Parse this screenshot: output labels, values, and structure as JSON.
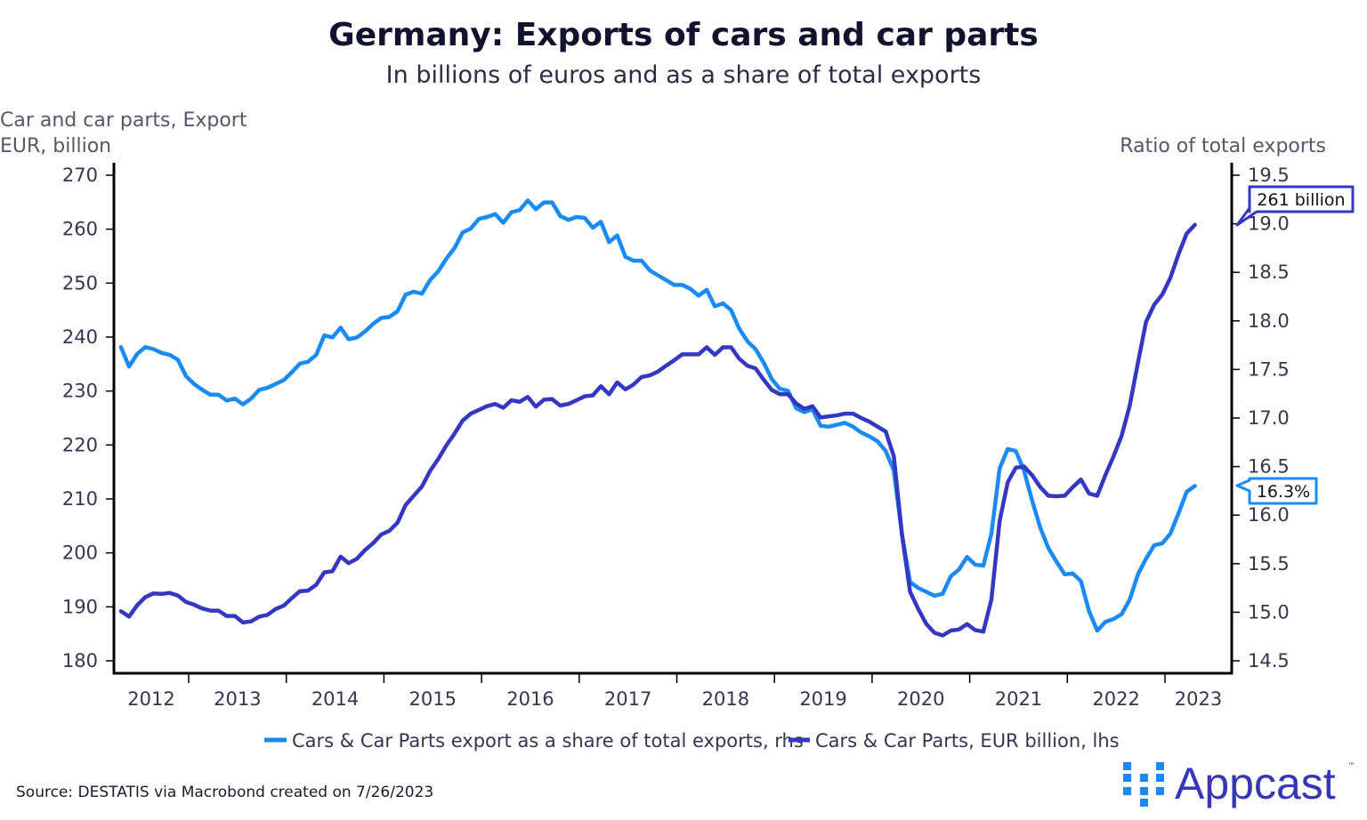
{
  "chart_data": {
    "type": "line",
    "title": "Germany: Exports of cars and car parts",
    "subtitle": "In billions of euros and as a share of total exports",
    "ylabel_left": [
      "Car and car parts, Export",
      "EUR, billion"
    ],
    "ylabel_right": "Ratio of total exports",
    "ylim_left": [
      180,
      270
    ],
    "ylim_right": [
      14.5,
      19.5
    ],
    "yticks_left": [
      "180",
      "190",
      "200",
      "210",
      "220",
      "230",
      "240",
      "250",
      "260",
      "270"
    ],
    "yticks_right": [
      "14.5",
      "15.0",
      "15.5",
      "16.0",
      "16.5",
      "17.0",
      "17.5",
      "18.0",
      "18.5",
      "19.0",
      "19.5"
    ],
    "xticks": [
      "2012",
      "2013",
      "2014",
      "2015",
      "2016",
      "2017",
      "2018",
      "2019",
      "2020",
      "2021",
      "2022",
      "2023"
    ],
    "grid": false,
    "legend_position": "bottom",
    "x": [
      "2012-05",
      "2012-06",
      "2012-07",
      "2012-08",
      "2012-09",
      "2012-10",
      "2012-11",
      "2012-12",
      "2013-01",
      "2013-02",
      "2013-03",
      "2013-04",
      "2013-05",
      "2013-06",
      "2013-07",
      "2013-08",
      "2013-09",
      "2013-10",
      "2013-11",
      "2013-12",
      "2014-01",
      "2014-02",
      "2014-03",
      "2014-04",
      "2014-05",
      "2014-06",
      "2014-07",
      "2014-08",
      "2014-09",
      "2014-10",
      "2014-11",
      "2014-12",
      "2015-01",
      "2015-02",
      "2015-03",
      "2015-04",
      "2015-05",
      "2015-06",
      "2015-07",
      "2015-08",
      "2015-09",
      "2015-10",
      "2015-11",
      "2015-12",
      "2016-01",
      "2016-02",
      "2016-03",
      "2016-04",
      "2016-05",
      "2016-06",
      "2016-07",
      "2016-08",
      "2016-09",
      "2016-10",
      "2016-11",
      "2016-12",
      "2017-01",
      "2017-02",
      "2017-03",
      "2017-04",
      "2017-05",
      "2017-06",
      "2017-07",
      "2017-08",
      "2017-09",
      "2017-10",
      "2017-11",
      "2017-12",
      "2018-01",
      "2018-02",
      "2018-03",
      "2018-04",
      "2018-05",
      "2018-06",
      "2018-07",
      "2018-08",
      "2018-09",
      "2018-10",
      "2018-11",
      "2018-12",
      "2019-01",
      "2019-02",
      "2019-03",
      "2019-04",
      "2019-05",
      "2019-06",
      "2019-07",
      "2019-08",
      "2019-09",
      "2019-10",
      "2019-11",
      "2019-12",
      "2020-01",
      "2020-02",
      "2020-03",
      "2020-04",
      "2020-05",
      "2020-06",
      "2020-07",
      "2020-08",
      "2020-09",
      "2020-10",
      "2020-11",
      "2020-12",
      "2021-01",
      "2021-02",
      "2021-03",
      "2021-04",
      "2021-05",
      "2021-06",
      "2021-07",
      "2021-08",
      "2021-09",
      "2021-10",
      "2021-11",
      "2021-12",
      "2022-01",
      "2022-02",
      "2022-03",
      "2022-04",
      "2022-05",
      "2022-06",
      "2022-07",
      "2022-08",
      "2022-09",
      "2022-10",
      "2022-11",
      "2022-12",
      "2023-01",
      "2023-02",
      "2023-03",
      "2023-04",
      "2023-05"
    ],
    "series": [
      {
        "name": "Cars & Car Parts export as a share of total exports, rhs",
        "axis": "right",
        "color": "#1a8af5",
        "values": [
          17.73,
          17.53,
          17.66,
          17.73,
          17.71,
          17.67,
          17.65,
          17.6,
          17.43,
          17.35,
          17.29,
          17.24,
          17.24,
          17.18,
          17.2,
          17.14,
          17.2,
          17.29,
          17.31,
          17.35,
          17.39,
          17.47,
          17.56,
          17.58,
          17.65,
          17.85,
          17.83,
          17.93,
          17.81,
          17.83,
          17.89,
          17.97,
          18.03,
          18.04,
          18.1,
          18.27,
          18.3,
          18.28,
          18.42,
          18.51,
          18.64,
          18.75,
          18.91,
          18.95,
          19.05,
          19.07,
          19.1,
          19.01,
          19.12,
          19.14,
          19.24,
          19.15,
          19.22,
          19.22,
          19.08,
          19.04,
          19.07,
          19.06,
          18.96,
          19.02,
          18.81,
          18.88,
          18.66,
          18.62,
          18.62,
          18.52,
          18.47,
          18.42,
          18.37,
          18.37,
          18.33,
          18.26,
          18.32,
          18.15,
          18.18,
          18.11,
          17.92,
          17.79,
          17.71,
          17.57,
          17.4,
          17.3,
          17.28,
          17.1,
          17.06,
          17.09,
          16.92,
          16.91,
          16.93,
          16.95,
          16.91,
          16.85,
          16.81,
          16.76,
          16.66,
          16.46,
          15.8,
          15.31,
          15.25,
          15.21,
          15.17,
          15.19,
          15.37,
          15.44,
          15.57,
          15.49,
          15.48,
          15.81,
          16.48,
          16.68,
          16.66,
          16.46,
          16.15,
          15.87,
          15.66,
          15.52,
          15.39,
          15.4,
          15.32,
          15.01,
          14.81,
          14.9,
          14.93,
          14.98,
          15.13,
          15.39,
          15.55,
          15.69,
          15.71,
          15.81,
          16.02,
          16.24,
          16.3
        ]
      },
      {
        "name": "Cars & Car Parts, EUR billion, lhs",
        "axis": "left",
        "color": "#3337c2",
        "values": [
          189.2,
          188.2,
          190.3,
          191.8,
          192.5,
          192.4,
          192.6,
          192.1,
          190.9,
          190.4,
          189.7,
          189.3,
          189.3,
          188.3,
          188.3,
          187.1,
          187.3,
          188.2,
          188.5,
          189.6,
          190.2,
          191.6,
          192.9,
          193.0,
          194.1,
          196.4,
          196.6,
          199.3,
          198.1,
          198.9,
          200.5,
          201.8,
          203.4,
          204.1,
          205.6,
          208.9,
          210.6,
          212.3,
          215.2,
          217.4,
          219.9,
          222.1,
          224.5,
          225.8,
          226.5,
          227.2,
          227.6,
          226.9,
          228.3,
          228.0,
          228.9,
          227.1,
          228.4,
          228.5,
          227.3,
          227.6,
          228.3,
          229.0,
          229.2,
          230.9,
          229.4,
          231.6,
          230.3,
          231.2,
          232.6,
          232.9,
          233.6,
          234.7,
          235.7,
          236.8,
          236.8,
          236.8,
          238.1,
          236.7,
          238.1,
          238.1,
          236.0,
          234.7,
          234.2,
          232.1,
          230.2,
          229.4,
          229.4,
          227.7,
          226.7,
          227.2,
          225.1,
          225.3,
          225.5,
          225.8,
          225.8,
          225.0,
          224.3,
          223.4,
          222.5,
          217.9,
          203.4,
          192.8,
          189.6,
          186.8,
          185.2,
          184.7,
          185.6,
          185.8,
          186.8,
          185.7,
          185.4,
          191.4,
          205.9,
          213.1,
          215.8,
          216.0,
          214.4,
          212.2,
          210.6,
          210.5,
          210.6,
          212.2,
          213.6,
          211.0,
          210.6,
          214.4,
          217.9,
          221.7,
          227.3,
          235.2,
          242.8,
          246.0,
          247.9,
          251.0,
          255.4,
          259.2,
          260.8
        ]
      }
    ],
    "annotations": {
      "last_left": "261 billion",
      "last_right": "16.3%"
    }
  },
  "footer": {
    "source": "Source: DESTATIS via Macrobond created on 7/26/2023"
  },
  "logo": {
    "text": "Appcast",
    "trademark": "™",
    "color": "#3537b8",
    "accent": "#1a8af5"
  }
}
